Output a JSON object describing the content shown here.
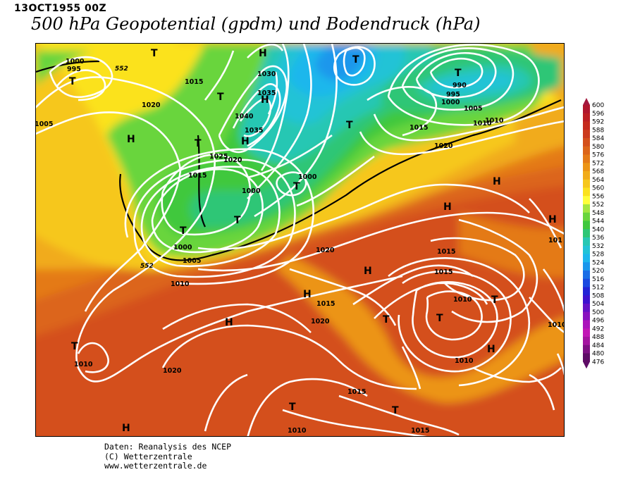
{
  "header": {
    "date": "13OCT1955 00Z",
    "title": "500 hPa Geopotential (gpdm) und Bodendruck (hPa)"
  },
  "legend": {
    "values": [
      600,
      596,
      592,
      588,
      584,
      580,
      576,
      572,
      568,
      564,
      560,
      556,
      552,
      548,
      544,
      540,
      536,
      532,
      528,
      524,
      520,
      516,
      512,
      508,
      504,
      500,
      496,
      492,
      488,
      484,
      480,
      476
    ],
    "colors": [
      "#a3183f",
      "#b0162e",
      "#bc1e24",
      "#c52a1e",
      "#cc3b1e",
      "#d4501c",
      "#dc651a",
      "#e47a18",
      "#ec9416",
      "#f1ab1a",
      "#f6c71d",
      "#fbe21e",
      "#ffff3a",
      "#a4e640",
      "#69d53c",
      "#3fc83e",
      "#2ec676",
      "#27c7b3",
      "#22c3d6",
      "#1db7ec",
      "#1a97ec",
      "#1a6ee6",
      "#1a49e0",
      "#2323d6",
      "#3d12cf",
      "#6412c6",
      "#8812bf",
      "#ab14bb",
      "#c217b6",
      "#a414a0",
      "#7e1083",
      "#5e0c66"
    ]
  },
  "contours": {
    "height_552_label": "552",
    "isobar_labels": [
      "1000",
      "995",
      "1015",
      "1020",
      "1005",
      "1030",
      "1035",
      "1040",
      "1035",
      "1025",
      "1020",
      "1015",
      "1000",
      "1000",
      "1005",
      "1010",
      "1000",
      "990",
      "995",
      "1000",
      "1005",
      "1010",
      "1015",
      "1020",
      "1020",
      "1020",
      "1015",
      "1010",
      "1010",
      "1020",
      "1015",
      "1020",
      "1010",
      "1015",
      "1010",
      "1015",
      "1010",
      "1015",
      "1010",
      "101",
      "1010"
    ],
    "pressure_centers": [
      "T",
      "H",
      "T",
      "T",
      "H",
      "H",
      "T",
      "T",
      "T",
      "H",
      "H",
      "T",
      "T",
      "H",
      "T",
      "H",
      "H",
      "H",
      "T",
      "T",
      "T",
      "T",
      "H",
      "H",
      "T",
      "T",
      "H",
      "H",
      "H",
      "T"
    ]
  },
  "credits": {
    "line1": "Daten: Reanalysis des NCEP",
    "line2": "(C) Wetterzentrale",
    "line3": "www.wetterzentrale.de"
  }
}
